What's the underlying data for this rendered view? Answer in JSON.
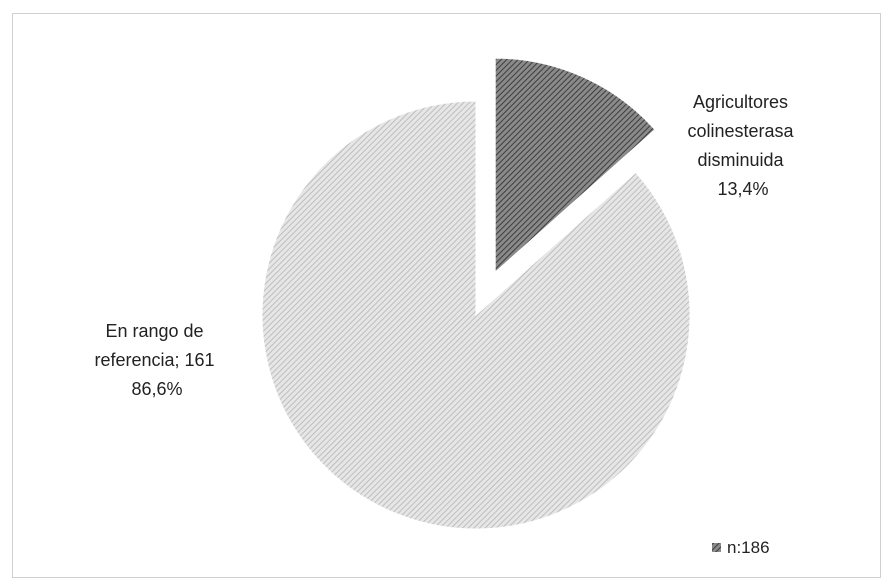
{
  "chart_data": {
    "type": "pie",
    "n_label": "n:186",
    "slices": [
      {
        "label_lines": [
          "Agricultores",
          "colinesterasa",
          "disminuida"
        ],
        "percent_label": "13,4%",
        "value": 13.4,
        "exploded": true,
        "color": "#6b6b6b"
      },
      {
        "label_lines": [
          "En rango de",
          "referencia; 161"
        ],
        "percent_label": "86,6%",
        "value": 86.6,
        "exploded": false,
        "color": "#c8c8c8"
      }
    ]
  }
}
